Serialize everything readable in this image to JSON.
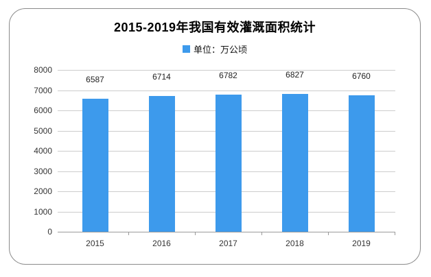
{
  "card": {
    "title": "2015-2019年我国有效灌溉面积统计"
  },
  "chart_data": {
    "type": "bar",
    "title": "2015-2019年我国有效灌溉面积统计",
    "legend": "单位：万公顷",
    "legend_position": "top-center",
    "categories": [
      "2015",
      "2016",
      "2017",
      "2018",
      "2019"
    ],
    "values": [
      6587,
      6714,
      6782,
      6827,
      6760
    ],
    "xlabel": "",
    "ylabel": "",
    "ylim": [
      0,
      8000
    ],
    "yticks": [
      0,
      1000,
      2000,
      3000,
      4000,
      5000,
      6000,
      7000,
      8000
    ],
    "grid": true,
    "value_labels": true,
    "bar_color": "#3D9AEC",
    "grid_color": "#cccccc",
    "axis_color": "#999999",
    "text_color": "#333333"
  }
}
